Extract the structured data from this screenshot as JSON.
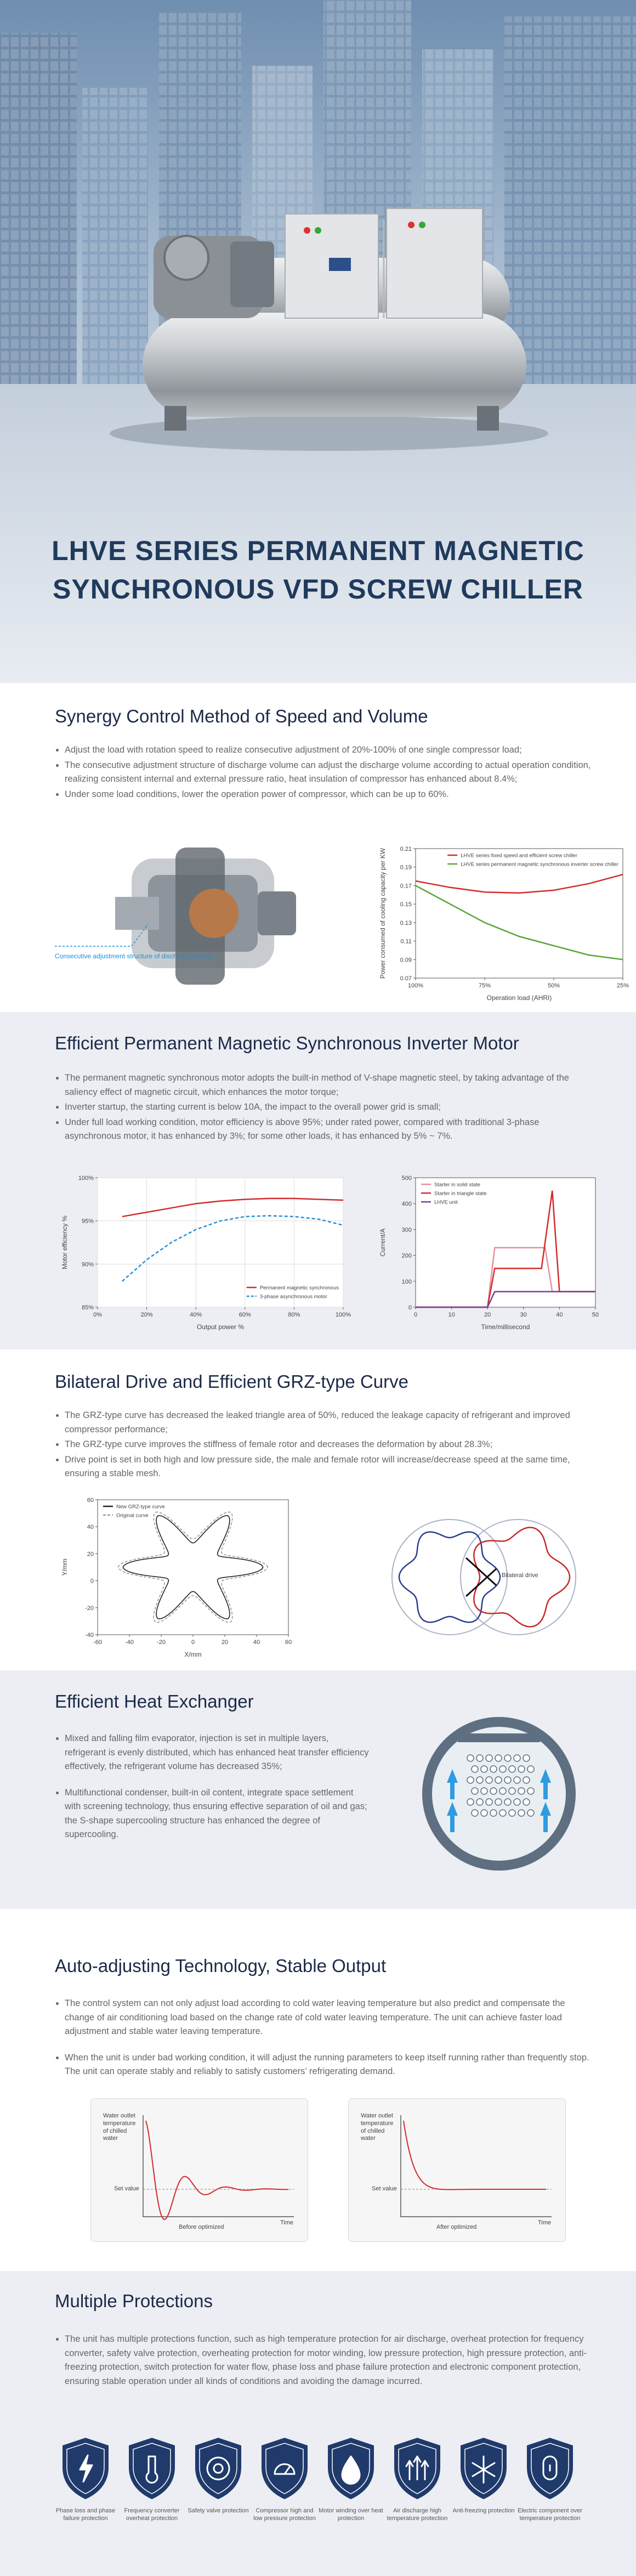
{
  "hero": {
    "title_lines": [
      "LHVE SERIES PERMANENT MAGNETIC",
      "SYNCHRONOUS VFD SCREW CHILLER"
    ]
  },
  "synergy": {
    "heading": "Synergy Control Method of Speed and Volume",
    "bullets": [
      "Adjust the load with rotation speed to realize consecutive adjustment of 20%-100% of one single compressor load;",
      "The consecutive adjustment structure of discharge volume can adjust the discharge volume according to actual operation condition, realizing consistent internal and external pressure ratio, heat insulation of compressor has enhanced about 8.4%;",
      "Under some load conditions, lower the operation power of compressor, which can be up to 60%."
    ],
    "figure_label": "Consecutive adjustment structure of discharge volume",
    "chart": {
      "type": "line",
      "ylabel": "Power consumed of cooling capacity per KW",
      "xlabel": "Operation load (AHRI)",
      "xlim": [
        100,
        25
      ],
      "xticks": [
        {
          "value": 100,
          "label": "100%"
        },
        {
          "value": 75,
          "label": "75%"
        },
        {
          "value": 50,
          "label": "50%"
        },
        {
          "value": 25,
          "label": "25%"
        }
      ],
      "ylim": [
        0.07,
        0.21
      ],
      "yticks": [
        0.21,
        0.19,
        0.17,
        0.15,
        0.13,
        0.11,
        0.09,
        0.07
      ],
      "grid": false,
      "legend": "upper right",
      "series": [
        {
          "name": "LHVE series fixed speed and efficient screw chiller",
          "color": "#d42b2b",
          "x": [
            100,
            87.5,
            75,
            62.5,
            50,
            37.5,
            25
          ],
          "values": [
            0.175,
            0.168,
            0.163,
            0.162,
            0.165,
            0.172,
            0.182
          ]
        },
        {
          "name": "LHVE series permanent magnetic synchronous inverter screw chiller",
          "color": "#5aa637",
          "x": [
            100,
            87.5,
            75,
            62.5,
            50,
            37.5,
            25
          ],
          "values": [
            0.17,
            0.15,
            0.13,
            0.115,
            0.105,
            0.095,
            0.09
          ]
        }
      ]
    }
  },
  "motor": {
    "heading": "Efficient Permanent Magnetic Synchronous Inverter Motor",
    "bullets": [
      "The permanent magnetic synchronous motor adopts the built-in method of V-shape magnetic steel, by taking advantage of the saliency effect of magnetic circuit, which enhances the motor torque;",
      "Inverter startup, the starting current is below 10A, the impact to the overall power grid is small;",
      "Under full load working condition, motor efficiency is above 95%; under rated power, compared with traditional 3-phase asynchronous motor, it has enhanced by 3%; for some other loads, it has enhanced by  5% ~ 7%."
    ],
    "efficiency_chart": {
      "type": "line",
      "ylabel": "Motor efficiency %",
      "xlabel": "Output power %",
      "xlim": [
        0,
        100
      ],
      "xticks": [
        {
          "value": 0,
          "label": "0%"
        },
        {
          "value": 20,
          "label": "20%"
        },
        {
          "value": 40,
          "label": "40%"
        },
        {
          "value": 60,
          "label": "60%"
        },
        {
          "value": 80,
          "label": "80%"
        },
        {
          "value": 100,
          "label": "100%"
        }
      ],
      "ylim": [
        85,
        100
      ],
      "yticks": [
        {
          "value": 85,
          "label": "85%"
        },
        {
          "value": 90,
          "label": "90%"
        },
        {
          "value": 95,
          "label": "95%"
        },
        {
          "value": 100,
          "label": "100%"
        }
      ],
      "grid": true,
      "legend": "lower right",
      "series": [
        {
          "name": "Permanent magnetic synchronous",
          "color": "#d42b2b",
          "dashed": false,
          "x": [
            10,
            20,
            30,
            40,
            50,
            60,
            70,
            80,
            90,
            100
          ],
          "values": [
            95.5,
            96,
            96.5,
            97,
            97.3,
            97.5,
            97.6,
            97.6,
            97.5,
            97.4
          ]
        },
        {
          "name": "3-phase asynchronous motor",
          "color": "#2a8fd6",
          "dashed": true,
          "x": [
            10,
            20,
            30,
            40,
            50,
            60,
            70,
            80,
            90,
            100
          ],
          "values": [
            88,
            90.5,
            92.5,
            94,
            95,
            95.5,
            95.6,
            95.5,
            95.2,
            94.5
          ]
        }
      ]
    },
    "current_chart": {
      "type": "line",
      "ylabel": "Current/A",
      "xlabel": "Time/millisecond",
      "xlim": [
        0,
        50
      ],
      "xticks": [
        0,
        10,
        20,
        30,
        40,
        50
      ],
      "ylim": [
        0,
        500
      ],
      "yticks": [
        0,
        100,
        200,
        300,
        400,
        500
      ],
      "grid": false,
      "legend": "upper left",
      "series": [
        {
          "name": "Starter in solid state",
          "color": "#e8909c",
          "dashed": false,
          "x": [
            0,
            20,
            22,
            36,
            38,
            50
          ],
          "values": [
            0,
            0,
            230,
            230,
            60,
            60
          ]
        },
        {
          "name": "Starter in triangle state",
          "color": "#d42b2b",
          "dashed": false,
          "x": [
            0,
            20,
            22,
            35,
            38,
            40,
            50
          ],
          "values": [
            0,
            0,
            150,
            150,
            450,
            60,
            60
          ]
        },
        {
          "name": "LHVE unit",
          "color": "#7a3fa0",
          "dashed": false,
          "x": [
            0,
            20,
            22,
            30,
            50
          ],
          "values": [
            0,
            0,
            60,
            60,
            60
          ]
        }
      ]
    }
  },
  "grz": {
    "heading": "Bilateral Drive and Efficient GRZ-type Curve",
    "bullets": [
      "The GRZ-type curve has decreased the leaked triangle area of 50%, reduced the leakage capacity of refrigerant and improved compressor performance;",
      "The GRZ-type curve improves the stiffness of female rotor and decreases the deformation by about 28.3%;",
      "Drive point is set in both high and low pressure side, the male and female rotor will increase/decrease speed at the same time, ensuring a stable mesh."
    ],
    "rotor_chart": {
      "type": "profile",
      "ylabel": "Y/mm",
      "xlabel": "X/mm",
      "xlim": [
        -60,
        60
      ],
      "xticks": [
        -60,
        -40,
        -20,
        0,
        20,
        40,
        60
      ],
      "ylim": [
        -40,
        60
      ],
      "yticks": [
        -40,
        -20,
        0,
        20,
        40,
        60
      ],
      "grid": false,
      "legend": "upper left",
      "curves": [
        {
          "name": "New GRZ-type curve",
          "color": "#222222",
          "dashed": false
        },
        {
          "name": "Original curve",
          "color": "#999999",
          "dashed": true
        }
      ]
    },
    "drive_label": "Bilateral drive"
  },
  "exchanger": {
    "heading": "Efficient Heat Exchanger",
    "bullets": [
      "Mixed and falling film evaporator, injection is set in multiple layers, refrigerant is evenly distributed, which has enhanced heat transfer efficiency effectively, the refrigerant volume has decreased 35%;",
      "Multifunctional condenser, built-in oil content, integrate space settlement with screening technology, thus ensuring effective separation of oil and gas; the S-shape supercooling structure has enhanced the degree of supercooling."
    ]
  },
  "output": {
    "heading": "Auto-adjusting Technology, Stable Output",
    "bullets": [
      "The control system can not only adjust load according to cold water leaving temperature but also predict and compensate the change of air conditioning load based on the change rate of cold water leaving temperature. The unit can achieve faster load adjustment and stable water leaving temperature.",
      "When the unit is under bad working condition, it will adjust the running parameters to keep itself running rather than frequently stop. The unit can operate stably and reliably to satisfy customers’ refrigerating demand."
    ],
    "panels": [
      {
        "y_label": "Water outlet temperature of chilled water",
        "set_label": "Set value",
        "x_label": "Time",
        "caption": "Before optimized"
      },
      {
        "y_label": "Water outlet temperature of chilled water",
        "set_label": "Set value",
        "x_label": "Time",
        "caption": "After optimized"
      }
    ]
  },
  "protections": {
    "heading": "Multiple Protections",
    "text": "The unit has multiple protections function, such as high temperature protection for air discharge, overheat protection for frequency converter, safety valve protection, overheating protection for motor winding, low pressure protection, high pressure protection, anti-freezing protection, switch protection for water flow, phase loss and phase failure protection and electronic component protection, ensuring stable operation under all kinds of conditions and avoiding the damage incurred.",
    "items": [
      "Phase loss and phase failure protection",
      "Frequency converter overheat protection",
      "Safety valve protection",
      "Compressor high and low pressure protection",
      "Motor winding over heat protection",
      "Air discharge high temperature protection",
      "Anti-freezing protection",
      "Electric component over temperature protection"
    ]
  }
}
